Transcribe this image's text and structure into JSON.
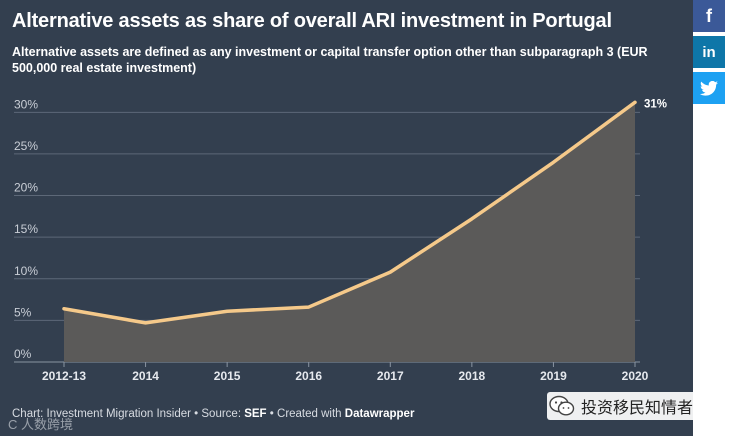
{
  "title": "Alternative assets as share of overall ARI investment in Portugal",
  "subtitle": "Alternative assets are defined as any investment or capital transfer option other than subparagraph 3 (EUR 500,000 real estate investment)",
  "footer": {
    "prefix": "Chart: Investment Migration Insider • Source: ",
    "source": "SEF",
    "mid": " • Created with ",
    "tool": "Datawrapper"
  },
  "watermark_left": "C 人数跨境",
  "wechat_label": "投资移民知情者",
  "social": [
    {
      "icon": "facebook-icon",
      "glyph": "f",
      "color": "#3b5998"
    },
    {
      "icon": "linkedin-icon",
      "glyph": "in",
      "color": "#0e76a8"
    },
    {
      "icon": "twitter-icon",
      "glyph": "t",
      "color": "#1da1f2"
    }
  ],
  "colors": {
    "background": "#333f4f",
    "line": "#f5c98a",
    "area": "#5b5a59",
    "grid": "#5d6878"
  },
  "chart_data": {
    "type": "area",
    "categories": [
      "2012-13",
      "2014",
      "2015",
      "2016",
      "2017",
      "2018",
      "2019",
      "2020"
    ],
    "series": [
      {
        "values": [
          6.4,
          4.7,
          6.1,
          6.6,
          10.8,
          17.2,
          24.0,
          31.2
        ]
      }
    ],
    "end_label": "31%",
    "yticks": [
      "0%",
      "5%",
      "10%",
      "15%",
      "20%",
      "25%",
      "30%"
    ],
    "ylim": [
      0,
      31
    ],
    "grid": true,
    "legend": "none"
  }
}
